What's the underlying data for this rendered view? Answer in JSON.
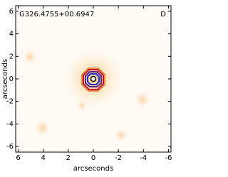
{
  "chart_data": {
    "type": "image",
    "title": "G326.4755+00.6947",
    "panel_label": "D",
    "xlabel": "arcseconds",
    "ylabel": "arcseconds",
    "xlim": [
      6.2,
      -6.2
    ],
    "ylim": [
      -6.5,
      6.5
    ],
    "xticks": [
      6,
      4,
      2,
      0,
      -2,
      -4,
      -6
    ],
    "yticks": [
      -6,
      -4,
      -2,
      0,
      2,
      4,
      6
    ]
  }
}
